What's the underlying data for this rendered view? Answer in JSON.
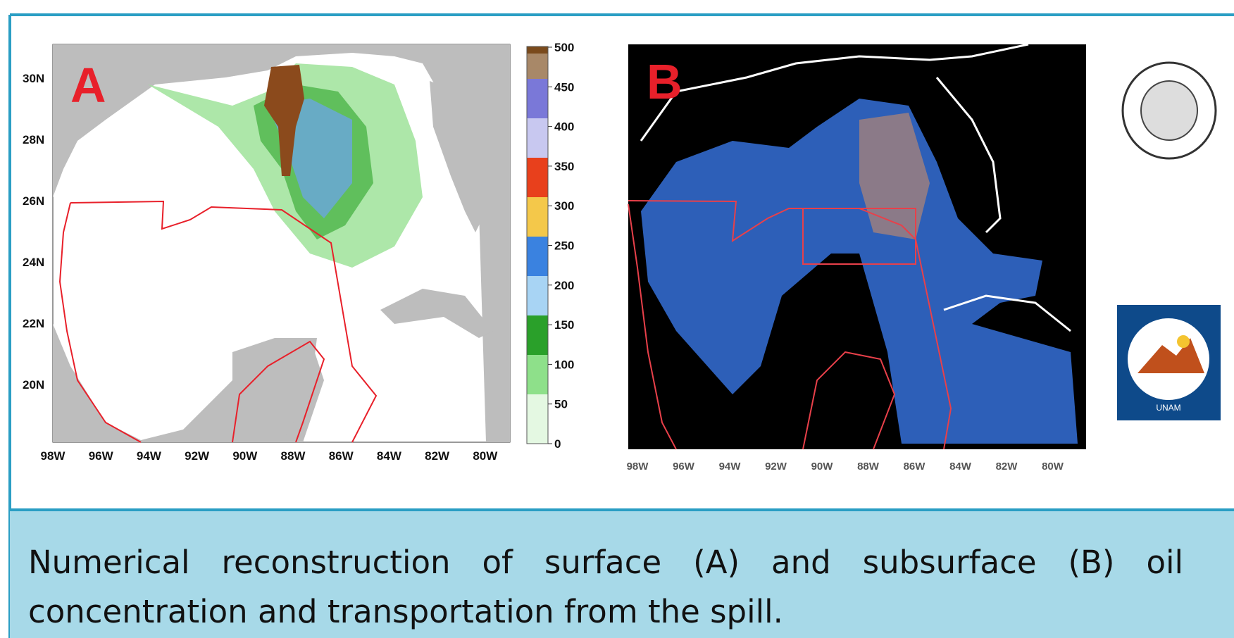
{
  "panel_a": {
    "label": "A",
    "lat_labels": [
      "30N",
      "28N",
      "26N",
      "24N",
      "22N",
      "20N"
    ],
    "lon_labels": [
      "98W",
      "96W",
      "94W",
      "92W",
      "90W",
      "88W",
      "86W",
      "84W",
      "82W",
      "80W"
    ],
    "colorbar_ticks": [
      500,
      450,
      400,
      350,
      300,
      250,
      200,
      150,
      100,
      50,
      0
    ]
  },
  "panel_b": {
    "label": "B",
    "lon_labels": [
      "98W",
      "96W",
      "94W",
      "92W",
      "90W",
      "88W",
      "86W",
      "84W",
      "82W",
      "80W"
    ]
  },
  "logos": {
    "cca": {
      "bottom_text": "UNAM"
    }
  },
  "caption": "Numerical reconstruction of surface (A) and subsurface (B) oil concentration and transportation from the spill."
}
